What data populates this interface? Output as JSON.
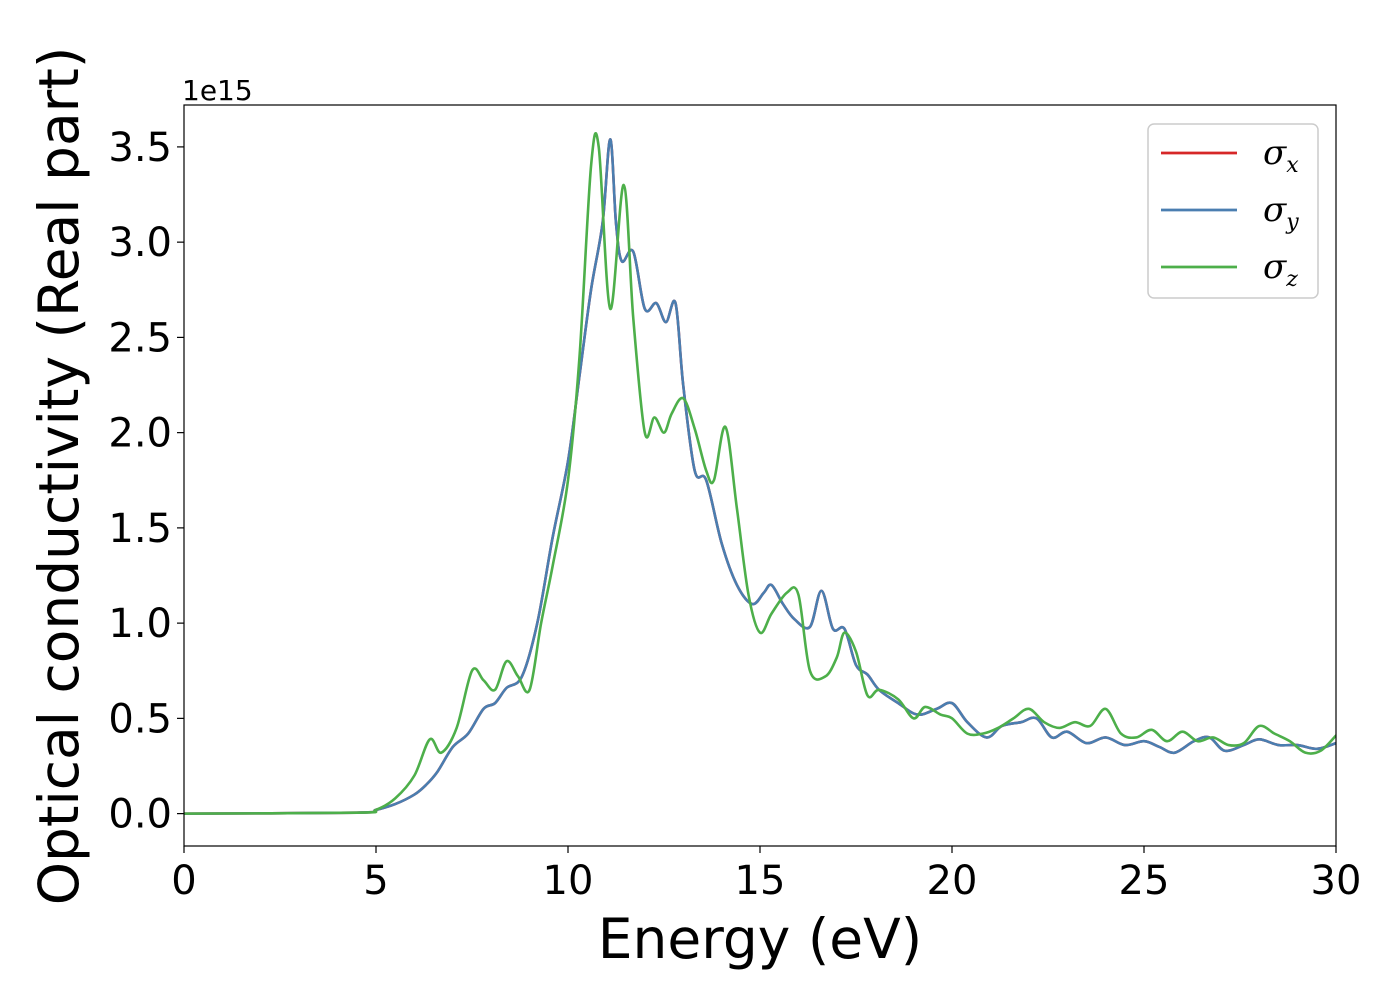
{
  "chart_data": {
    "type": "line",
    "xlabel": "Energy (eV)",
    "ylabel": "Optical conductivity (Real part)",
    "y_offset_label": "1e15",
    "xlim": [
      0,
      30
    ],
    "ylim": [
      -0.17,
      3.72
    ],
    "xticks": [
      0,
      5,
      10,
      15,
      20,
      25,
      30
    ],
    "xtick_labels": [
      "0",
      "5",
      "10",
      "15",
      "20",
      "25",
      "30"
    ],
    "yticks": [
      0.0,
      0.5,
      1.0,
      1.5,
      2.0,
      2.5,
      3.0,
      3.5
    ],
    "ytick_labels": [
      "0.0",
      "0.5",
      "1.0",
      "1.5",
      "2.0",
      "2.5",
      "3.0",
      "3.5"
    ],
    "grid": false,
    "legend_position": "top-right",
    "series": [
      {
        "name": "σx",
        "symbol": "σ",
        "subscript": "x",
        "color": "#d62728",
        "x": [
          0,
          4.5,
          5.0,
          5.5,
          6.0,
          6.3,
          6.6,
          7.0,
          7.4,
          7.8,
          8.1,
          8.4,
          8.8,
          9.2,
          9.6,
          10.0,
          10.3,
          10.6,
          10.9,
          11.1,
          11.25,
          11.4,
          11.7,
          12.0,
          12.3,
          12.55,
          12.8,
          13.0,
          13.3,
          13.6,
          14.0,
          14.4,
          14.8,
          15.1,
          15.3,
          15.6,
          15.9,
          16.3,
          16.6,
          16.9,
          17.2,
          17.5,
          17.8,
          18.1,
          18.6,
          19.1,
          19.6,
          20.0,
          20.4,
          20.9,
          21.3,
          21.8,
          22.2,
          22.6,
          23.0,
          23.5,
          24.0,
          24.5,
          25.0,
          25.4,
          25.8,
          26.3,
          26.7,
          27.1,
          27.6,
          28.0,
          28.5,
          29.0,
          29.5,
          30.0
        ],
        "y": [
          0.0,
          0.005,
          0.02,
          0.05,
          0.1,
          0.15,
          0.22,
          0.35,
          0.42,
          0.55,
          0.58,
          0.66,
          0.72,
          1.0,
          1.45,
          1.85,
          2.3,
          2.75,
          3.1,
          3.54,
          3.1,
          2.9,
          2.95,
          2.65,
          2.68,
          2.58,
          2.68,
          2.25,
          1.8,
          1.75,
          1.42,
          1.2,
          1.1,
          1.16,
          1.2,
          1.1,
          1.02,
          0.98,
          1.17,
          0.97,
          0.97,
          0.78,
          0.73,
          0.65,
          0.58,
          0.52,
          0.55,
          0.58,
          0.48,
          0.4,
          0.46,
          0.48,
          0.5,
          0.4,
          0.43,
          0.37,
          0.4,
          0.36,
          0.38,
          0.35,
          0.32,
          0.38,
          0.4,
          0.33,
          0.36,
          0.39,
          0.36,
          0.36,
          0.34,
          0.37
        ]
      },
      {
        "name": "σy",
        "symbol": "σ",
        "subscript": "y",
        "color": "#4a7eb0",
        "x": [
          0,
          4.5,
          5.0,
          5.5,
          6.0,
          6.3,
          6.6,
          7.0,
          7.4,
          7.8,
          8.1,
          8.4,
          8.8,
          9.2,
          9.6,
          10.0,
          10.3,
          10.6,
          10.9,
          11.1,
          11.25,
          11.4,
          11.7,
          12.0,
          12.3,
          12.55,
          12.8,
          13.0,
          13.3,
          13.6,
          14.0,
          14.4,
          14.8,
          15.1,
          15.3,
          15.6,
          15.9,
          16.3,
          16.6,
          16.9,
          17.2,
          17.5,
          17.8,
          18.1,
          18.6,
          19.1,
          19.6,
          20.0,
          20.4,
          20.9,
          21.3,
          21.8,
          22.2,
          22.6,
          23.0,
          23.5,
          24.0,
          24.5,
          25.0,
          25.4,
          25.8,
          26.3,
          26.7,
          27.1,
          27.6,
          28.0,
          28.5,
          29.0,
          29.5,
          30.0
        ],
        "y": [
          0.0,
          0.005,
          0.02,
          0.05,
          0.1,
          0.15,
          0.22,
          0.35,
          0.42,
          0.55,
          0.58,
          0.66,
          0.72,
          1.0,
          1.45,
          1.85,
          2.3,
          2.75,
          3.1,
          3.54,
          3.1,
          2.9,
          2.95,
          2.65,
          2.68,
          2.58,
          2.68,
          2.25,
          1.8,
          1.75,
          1.42,
          1.2,
          1.1,
          1.16,
          1.2,
          1.1,
          1.02,
          0.98,
          1.17,
          0.97,
          0.97,
          0.78,
          0.73,
          0.65,
          0.58,
          0.52,
          0.55,
          0.58,
          0.48,
          0.4,
          0.46,
          0.48,
          0.5,
          0.4,
          0.43,
          0.37,
          0.4,
          0.36,
          0.38,
          0.35,
          0.32,
          0.38,
          0.4,
          0.33,
          0.36,
          0.39,
          0.36,
          0.36,
          0.34,
          0.37
        ]
      },
      {
        "name": "σz",
        "symbol": "σ",
        "subscript": "z",
        "color": "#4daf4a",
        "x": [
          0,
          4.5,
          5.0,
          5.5,
          6.0,
          6.4,
          6.7,
          7.1,
          7.5,
          7.8,
          8.1,
          8.4,
          8.7,
          9.0,
          9.3,
          9.6,
          10.0,
          10.3,
          10.6,
          10.8,
          11.1,
          11.45,
          11.7,
          12.0,
          12.25,
          12.5,
          12.7,
          13.0,
          13.3,
          13.6,
          13.8,
          14.1,
          14.4,
          14.7,
          15.0,
          15.3,
          15.7,
          16.0,
          16.3,
          16.7,
          17.0,
          17.2,
          17.5,
          17.8,
          18.1,
          18.6,
          19.0,
          19.3,
          19.7,
          20.0,
          20.4,
          20.8,
          21.2,
          21.6,
          22.0,
          22.4,
          22.8,
          23.2,
          23.6,
          24.0,
          24.4,
          24.8,
          25.2,
          25.6,
          26.0,
          26.4,
          26.8,
          27.2,
          27.6,
          28.0,
          28.4,
          28.8,
          29.2,
          29.6,
          30.0
        ],
        "y": [
          0.0,
          0.005,
          0.02,
          0.08,
          0.2,
          0.39,
          0.32,
          0.45,
          0.75,
          0.7,
          0.65,
          0.8,
          0.72,
          0.65,
          1.0,
          1.3,
          1.75,
          2.4,
          3.4,
          3.5,
          2.65,
          3.3,
          2.6,
          2.0,
          2.08,
          2.0,
          2.1,
          2.18,
          2.02,
          1.8,
          1.75,
          2.03,
          1.6,
          1.15,
          0.95,
          1.05,
          1.16,
          1.15,
          0.75,
          0.72,
          0.82,
          0.95,
          0.85,
          0.62,
          0.65,
          0.6,
          0.5,
          0.56,
          0.52,
          0.5,
          0.42,
          0.42,
          0.45,
          0.5,
          0.55,
          0.48,
          0.45,
          0.48,
          0.46,
          0.55,
          0.42,
          0.4,
          0.44,
          0.38,
          0.43,
          0.38,
          0.4,
          0.36,
          0.37,
          0.46,
          0.42,
          0.38,
          0.32,
          0.33,
          0.41
        ]
      }
    ]
  }
}
